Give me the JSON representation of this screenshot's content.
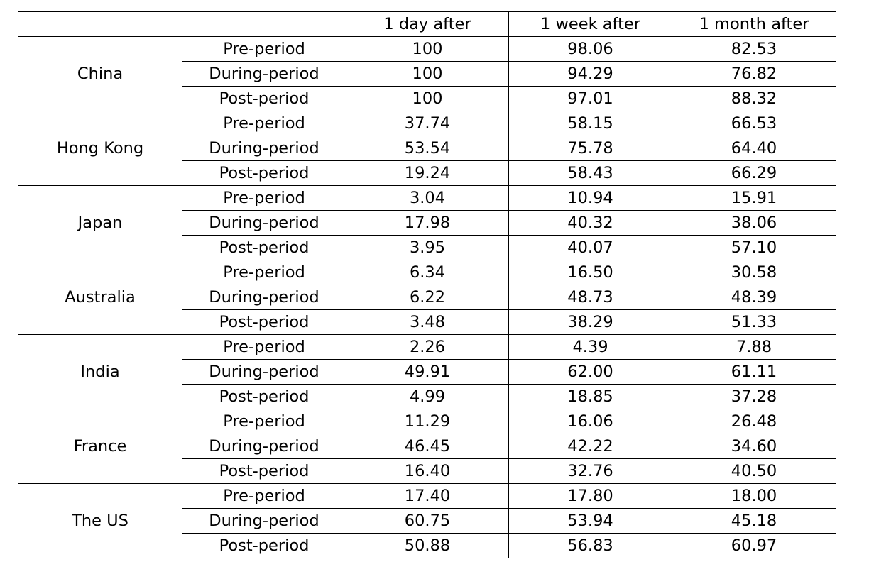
{
  "table": {
    "header": [
      "",
      "",
      "1 day after",
      "1 week after",
      "1 month after"
    ],
    "groups": [
      {
        "country": "China",
        "rows": [
          {
            "period": "Pre-period",
            "values": [
              "100",
              "98.06",
              "82.53"
            ]
          },
          {
            "period": "During-period",
            "values": [
              "100",
              "94.29",
              "76.82"
            ]
          },
          {
            "period": "Post-period",
            "values": [
              "100",
              "97.01",
              "88.32"
            ]
          }
        ]
      },
      {
        "country": "Hong Kong",
        "rows": [
          {
            "period": "Pre-period",
            "values": [
              "37.74",
              "58.15",
              "66.53"
            ]
          },
          {
            "period": "During-period",
            "values": [
              "53.54",
              "75.78",
              "64.40"
            ]
          },
          {
            "period": "Post-period",
            "values": [
              "19.24",
              "58.43",
              "66.29"
            ]
          }
        ]
      },
      {
        "country": "Japan",
        "rows": [
          {
            "period": "Pre-period",
            "values": [
              "3.04",
              "10.94",
              "15.91"
            ]
          },
          {
            "period": "During-period",
            "values": [
              "17.98",
              "40.32",
              "38.06"
            ]
          },
          {
            "period": "Post-period",
            "values": [
              "3.95",
              "40.07",
              "57.10"
            ]
          }
        ]
      },
      {
        "country": "Australia",
        "rows": [
          {
            "period": "Pre-period",
            "values": [
              "6.34",
              "16.50",
              "30.58"
            ]
          },
          {
            "period": "During-period",
            "values": [
              "6.22",
              "48.73",
              "48.39"
            ]
          },
          {
            "period": "Post-period",
            "values": [
              "3.48",
              "38.29",
              "51.33"
            ]
          }
        ]
      },
      {
        "country": "India",
        "rows": [
          {
            "period": "Pre-period",
            "values": [
              "2.26",
              "4.39",
              "7.88"
            ]
          },
          {
            "period": "During-period",
            "values": [
              "49.91",
              "62.00",
              "61.11"
            ]
          },
          {
            "period": "Post-period",
            "values": [
              "4.99",
              "18.85",
              "37.28"
            ]
          }
        ]
      },
      {
        "country": "France",
        "rows": [
          {
            "period": "Pre-period",
            "values": [
              "11.29",
              "16.06",
              "26.48"
            ]
          },
          {
            "period": "During-period",
            "values": [
              "46.45",
              "42.22",
              "34.60"
            ]
          },
          {
            "period": "Post-period",
            "values": [
              "16.40",
              "32.76",
              "40.50"
            ]
          }
        ]
      },
      {
        "country": "The US",
        "rows": [
          {
            "period": "Pre-period",
            "values": [
              "17.40",
              "17.80",
              "18.00"
            ]
          },
          {
            "period": "During-period",
            "values": [
              "60.75",
              "53.94",
              "45.18"
            ]
          },
          {
            "period": "Post-period",
            "values": [
              "50.88",
              "56.83",
              "60.97"
            ]
          }
        ]
      }
    ]
  }
}
